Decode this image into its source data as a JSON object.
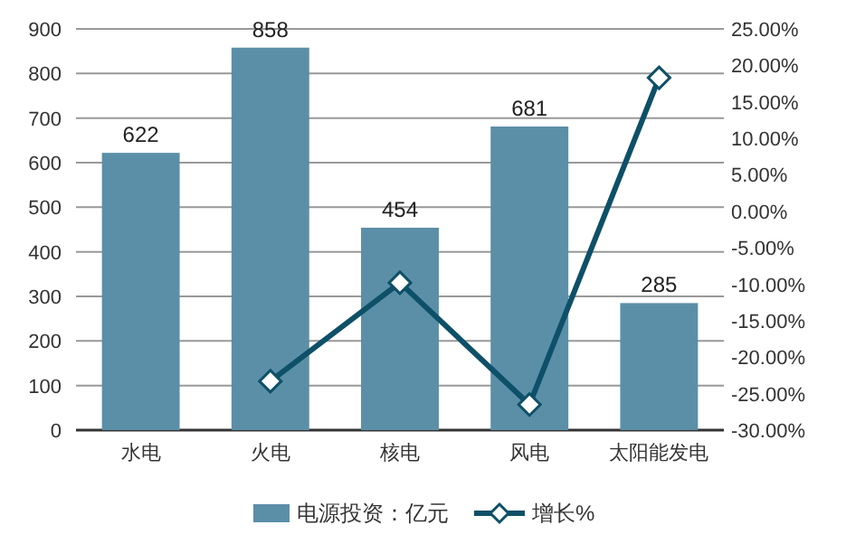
{
  "chart_data": {
    "type": "bar",
    "categories": [
      "水电",
      "火电",
      "核电",
      "风电",
      "太阳能发电"
    ],
    "series": [
      {
        "name": "电源投资：亿元",
        "color": "#5b8fa8",
        "values": [
          622,
          858,
          454,
          681,
          285
        ],
        "value_labels": [
          "622",
          "858",
          "454",
          "681",
          "285"
        ]
      },
      {
        "name": "增长%",
        "type": "line",
        "axis": "y2",
        "color": "#0e5068",
        "marker": "diamond",
        "values": [
          null,
          -23.3,
          -9.8,
          -26.5,
          18.3
        ]
      }
    ],
    "ylim": [
      0,
      900
    ],
    "yticks": [
      0,
      100,
      200,
      300,
      400,
      500,
      600,
      700,
      800,
      900
    ],
    "y2lim": [
      -30,
      25
    ],
    "y2ticks": [
      {
        "value": -30,
        "label": "-30.00%"
      },
      {
        "value": -25,
        "label": "-25.00%"
      },
      {
        "value": -20,
        "label": "-20.00%"
      },
      {
        "value": -15,
        "label": "-15.00%"
      },
      {
        "value": -10,
        "label": "-10.00%"
      },
      {
        "value": -5,
        "label": "-5.00%"
      },
      {
        "value": 0,
        "label": "0.00%"
      },
      {
        "value": 5,
        "label": "5.00%"
      },
      {
        "value": 10,
        "label": "10.00%"
      },
      {
        "value": 15,
        "label": "15.00%"
      },
      {
        "value": 20,
        "label": "20.00%"
      },
      {
        "value": 25,
        "label": "25.00%"
      }
    ],
    "grid": "y",
    "legend": "bottom"
  }
}
